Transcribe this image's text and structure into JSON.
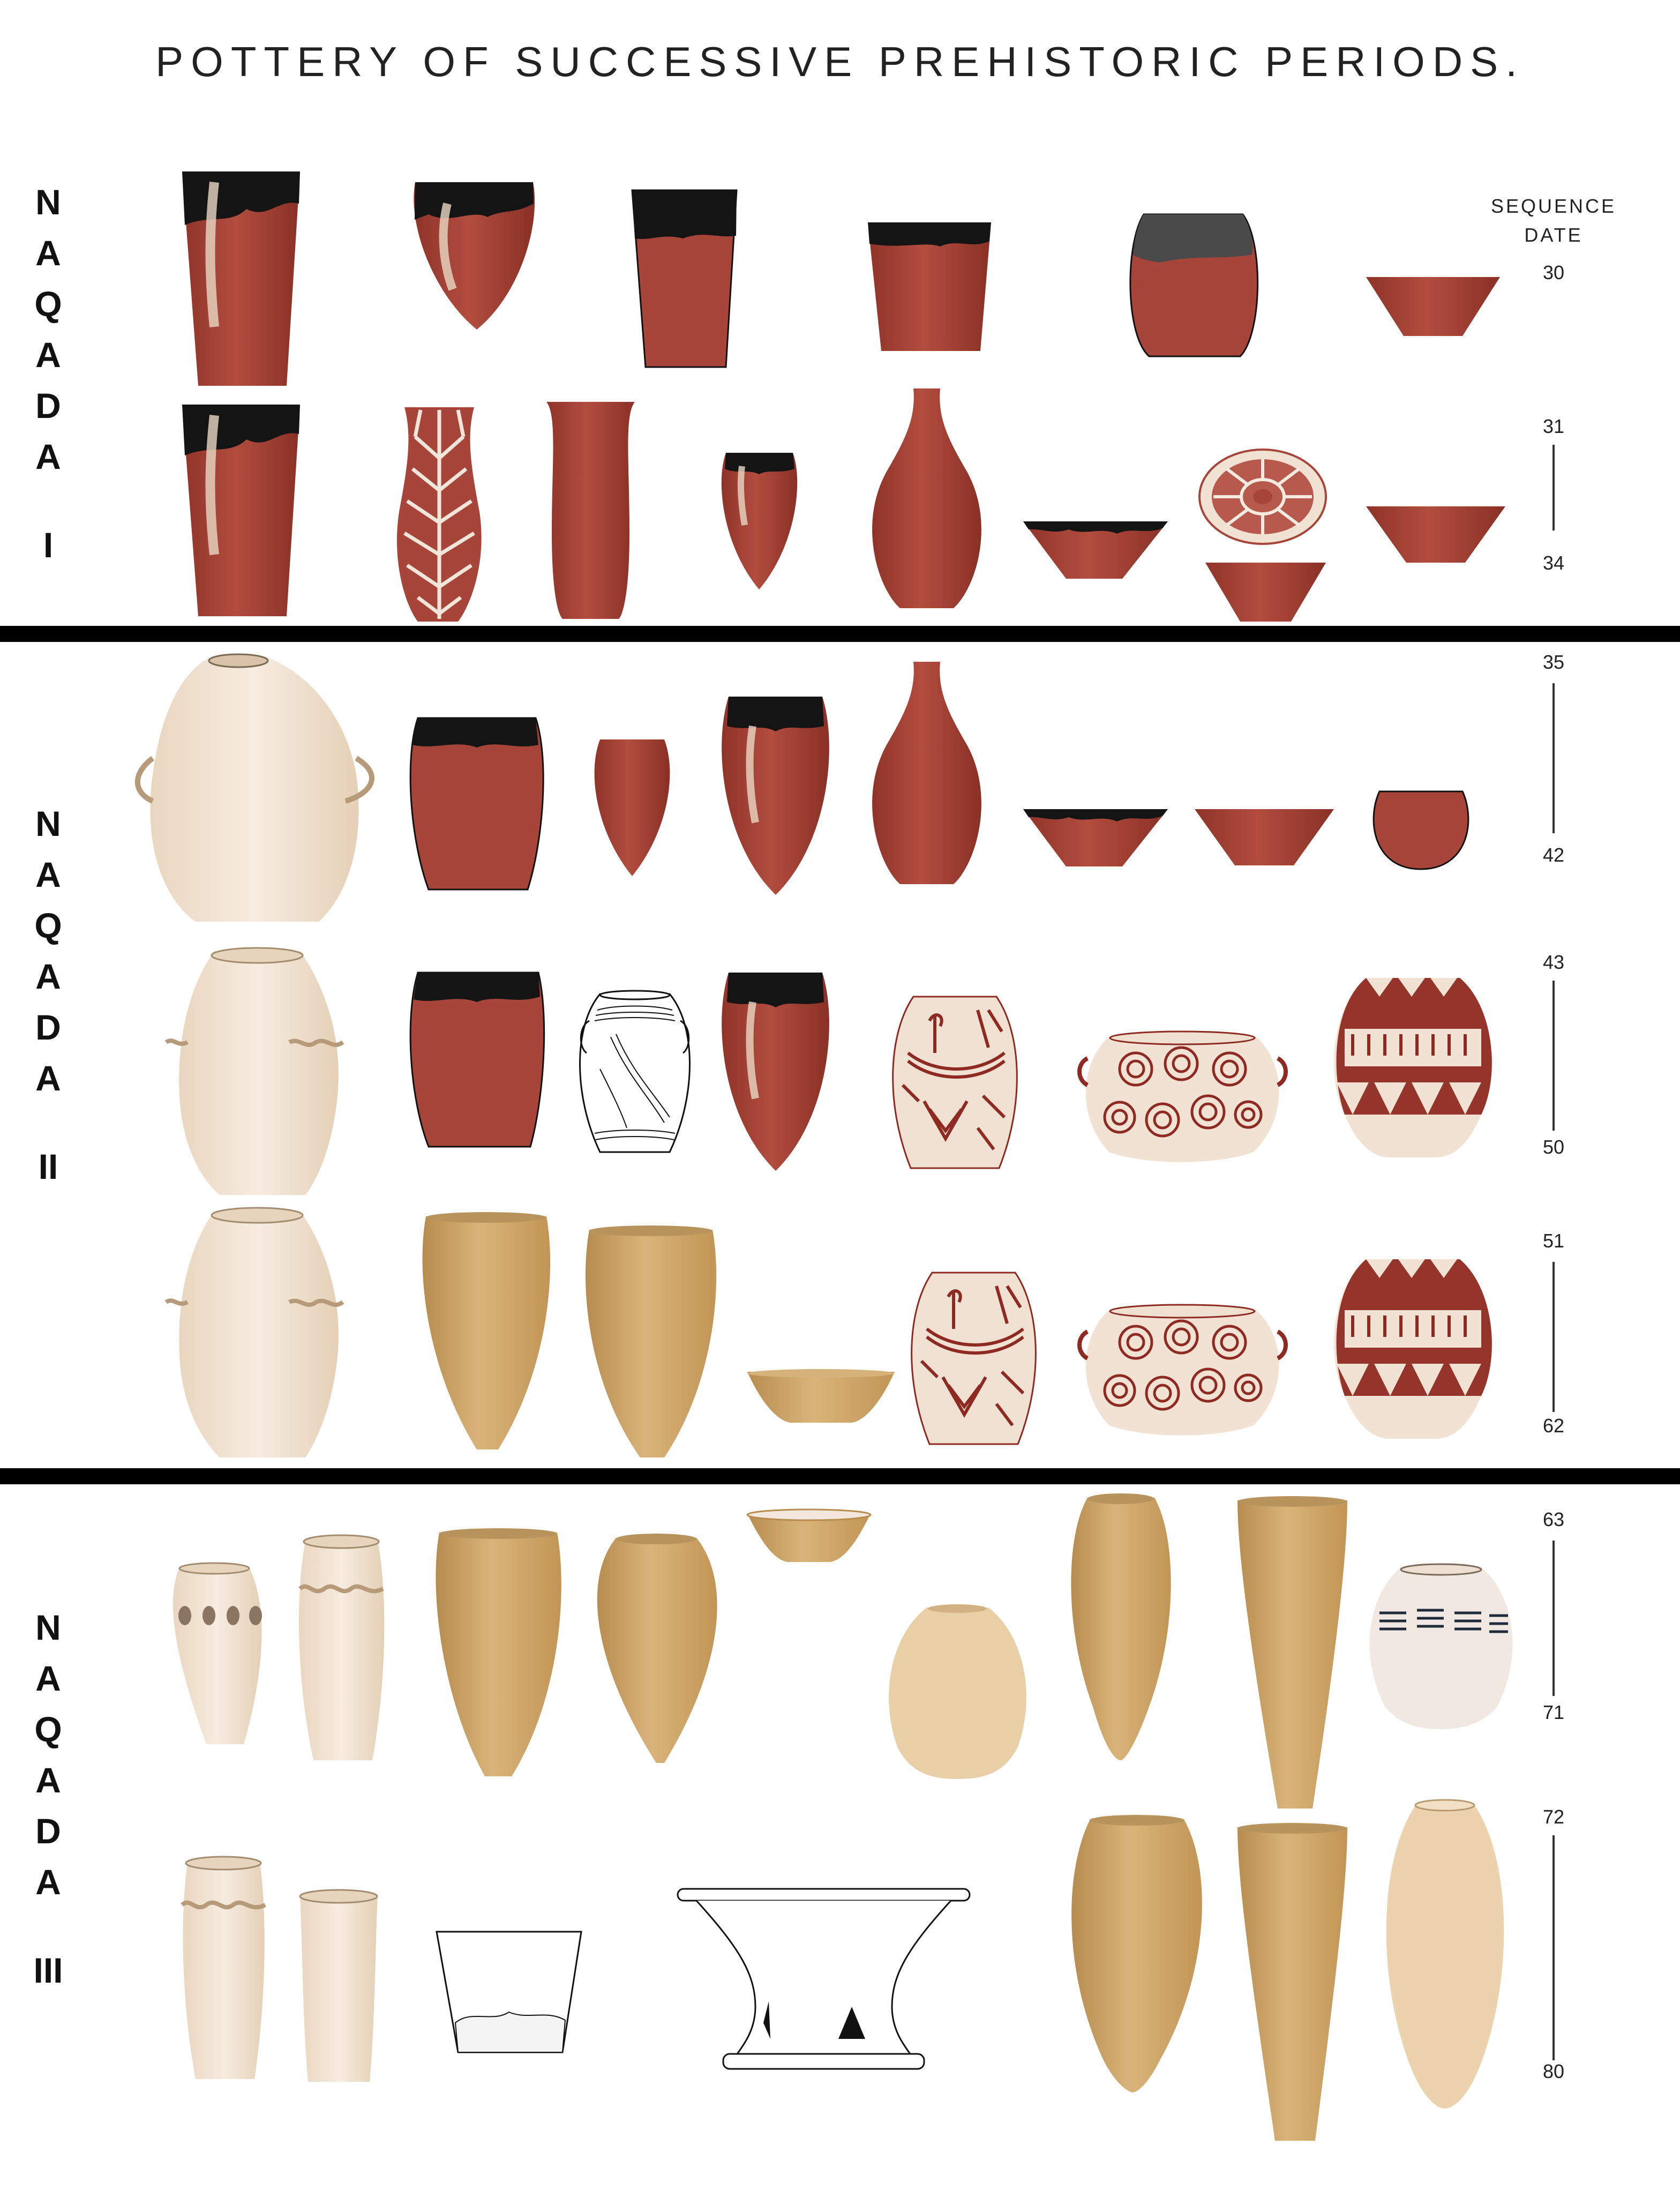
{
  "title": "POTTERY OF SUCCESSIVE PREHISTORIC PERIODS.",
  "sequence_header": {
    "line1": "SEQUENCE",
    "line2": "DATE"
  },
  "periods": [
    {
      "letters": [
        "N",
        "A",
        "Q",
        "A",
        "D",
        "A"
      ],
      "numeral": "I"
    },
    {
      "letters": [
        "N",
        "A",
        "Q",
        "A",
        "D",
        "A"
      ],
      "numeral": "II"
    },
    {
      "letters": [
        "N",
        "A",
        "Q",
        "A",
        "D",
        "A"
      ],
      "numeral": "III"
    }
  ],
  "sequence_dates": [
    {
      "start": "30",
      "end": ""
    },
    {
      "start": "31",
      "end": "34"
    },
    {
      "start": "35",
      "end": "42"
    },
    {
      "start": "43",
      "end": "50"
    },
    {
      "start": "51",
      "end": "62"
    },
    {
      "start": "63",
      "end": "71"
    },
    {
      "start": "72",
      "end": "80"
    }
  ],
  "colors": {
    "red_polished": "#a8453a",
    "black_top": "#141414",
    "buff": "#efe0cc",
    "rough_tan": "#c9a266",
    "decor_red": "#8e2a22"
  }
}
